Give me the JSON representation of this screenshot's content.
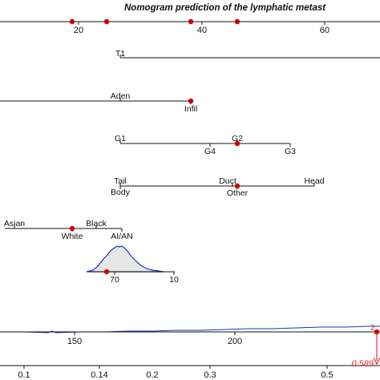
{
  "chart_data": {
    "type": "nomogram",
    "title": "Nomogram prediction of the lymphatic metast",
    "colors": {
      "axis": "#111111",
      "point": "#cc0000",
      "density": "#1f2fbf",
      "density_fill": "#e6e6e6",
      "probability": "#e03030"
    },
    "points_axis": {
      "ticks": [
        "20",
        "40",
        "60"
      ],
      "range": [
        0,
        100
      ],
      "marked_values": [
        18.5,
        23.5,
        38,
        45.5
      ]
    },
    "rows": [
      {
        "name": "t_stage",
        "labels": [
          {
            "text": "T1",
            "pos": "above"
          }
        ]
      },
      {
        "name": "histology",
        "labels": [
          {
            "text": "Aden",
            "pos": "above"
          },
          {
            "text": "Infil",
            "pos": "below"
          }
        ],
        "selected": "Infil"
      },
      {
        "name": "grade",
        "labels": [
          {
            "text": "G1",
            "pos": "above"
          },
          {
            "text": "G2",
            "pos": "above"
          },
          {
            "text": "G4",
            "pos": "below"
          },
          {
            "text": "G3",
            "pos": "below"
          }
        ],
        "selected": "G2"
      },
      {
        "name": "site",
        "labels": [
          {
            "text": "Tail",
            "pos": "above"
          },
          {
            "text": "Duct",
            "pos": "above"
          },
          {
            "text": "Head",
            "pos": "above"
          },
          {
            "text": "Body",
            "pos": "below"
          },
          {
            "text": "Other",
            "pos": "below"
          }
        ],
        "selected": "Other"
      },
      {
        "name": "race",
        "labels": [
          {
            "text": "Asian",
            "pos": "above"
          },
          {
            "text": "Black",
            "pos": "above"
          },
          {
            "text": "White",
            "pos": "below"
          },
          {
            "text": "AI/AN",
            "pos": "below"
          }
        ],
        "selected": "White"
      },
      {
        "name": "age",
        "tick_labels": [
          "70",
          "10"
        ],
        "selected": "70"
      }
    ],
    "total_points_axis": {
      "ticks": [
        "150",
        "200"
      ],
      "marker_label": "2"
    },
    "probability_axis": {
      "ticks": [
        "0.1",
        "0.14",
        "0.2",
        "0.3",
        "0.5"
      ],
      "value": "0.589"
    }
  }
}
